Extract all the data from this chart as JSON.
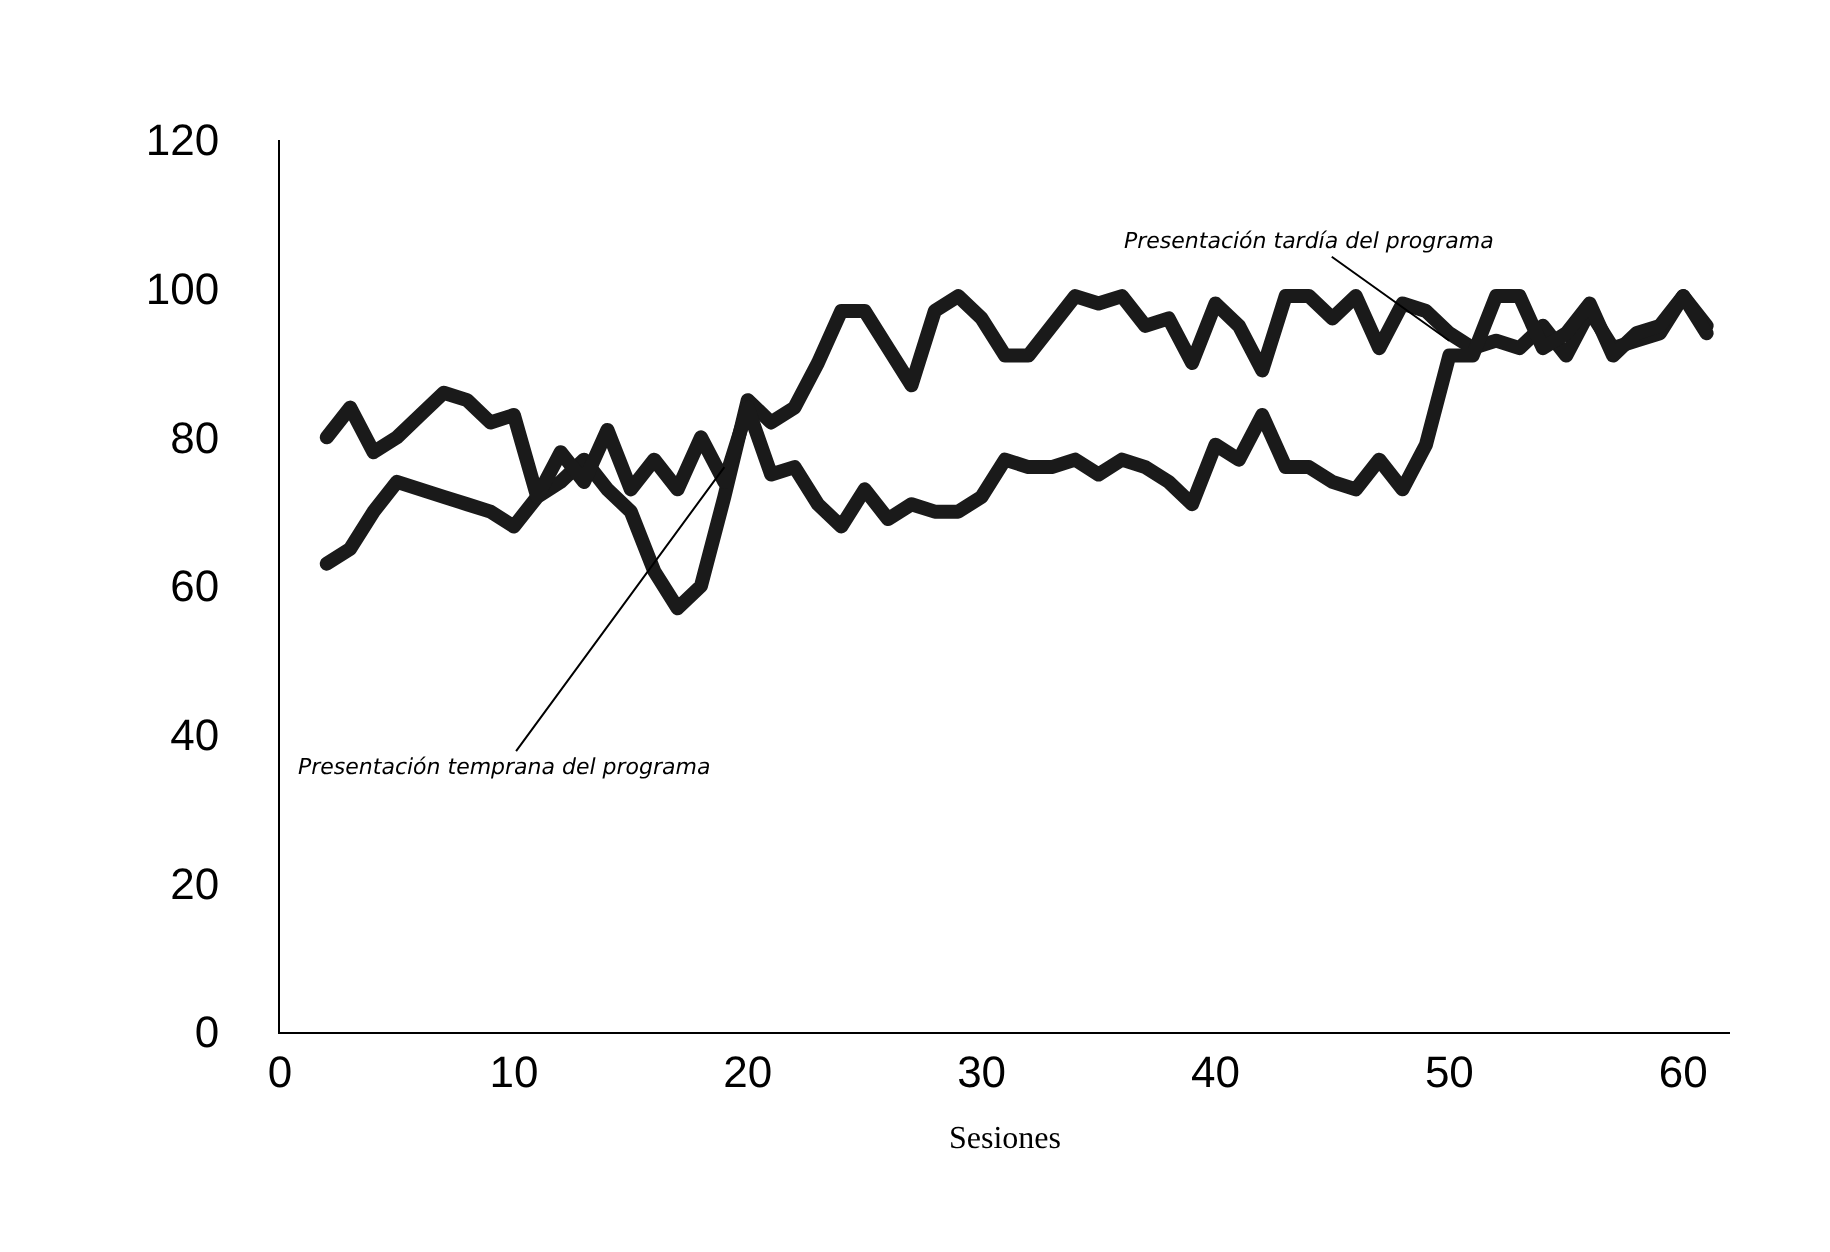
{
  "chart_data": {
    "type": "line",
    "xlabel": "Sesiones",
    "x": [
      2,
      3,
      4,
      5,
      6,
      7,
      8,
      9,
      10,
      11,
      12,
      13,
      14,
      15,
      16,
      17,
      18,
      19,
      20,
      21,
      22,
      23,
      24,
      25,
      26,
      27,
      28,
      29,
      30,
      31,
      32,
      33,
      34,
      35,
      36,
      37,
      38,
      39,
      40,
      41,
      42,
      43,
      44,
      45,
      46,
      47,
      48,
      49,
      50,
      51,
      52,
      53,
      54,
      55,
      56,
      57,
      58,
      59,
      60,
      61
    ],
    "series": [
      {
        "color": "#1a1a1a",
        "values": [
          63,
          65,
          70,
          74,
          73,
          72,
          71,
          70,
          68,
          72,
          74,
          77,
          73,
          70,
          62,
          57,
          60,
          72,
          85,
          82,
          84,
          90,
          97,
          97,
          92,
          87,
          97,
          99,
          96,
          91,
          91,
          95,
          99,
          98,
          99,
          95,
          96,
          90,
          98,
          95,
          89,
          99,
          99,
          96,
          99,
          92,
          98,
          97,
          94,
          92,
          93,
          92,
          95,
          91,
          97,
          92,
          93,
          94,
          99,
          95
        ]
      },
      {
        "color": "#1a1a1a",
        "values": [
          80,
          84,
          78,
          80,
          83,
          86,
          85,
          82,
          83,
          72,
          78,
          74,
          81,
          73,
          77,
          73,
          80,
          74,
          84,
          75,
          76,
          71,
          68,
          73,
          69,
          71,
          70,
          70,
          72,
          77,
          76,
          76,
          77,
          75,
          77,
          76,
          74,
          71,
          79,
          77,
          83,
          76,
          76,
          74,
          73,
          77,
          73,
          79,
          91,
          91,
          99,
          99,
          92,
          94,
          98,
          91,
          94,
          95,
          99,
          94
        ]
      }
    ],
    "xlim": [
      0,
      62
    ],
    "xticks": [
      0,
      10,
      20,
      30,
      40,
      50,
      60
    ],
    "ylim": [
      0,
      120
    ],
    "yticks": [
      0,
      20,
      40,
      60,
      80,
      100,
      120
    ],
    "grid": false,
    "line_style": "solid",
    "annotations": [
      {
        "text": "Presentación temprana del programa",
        "x": 19,
        "y": 76
      },
      {
        "text": "Presentación tardía del programa",
        "x": 50,
        "y": 93
      }
    ]
  }
}
